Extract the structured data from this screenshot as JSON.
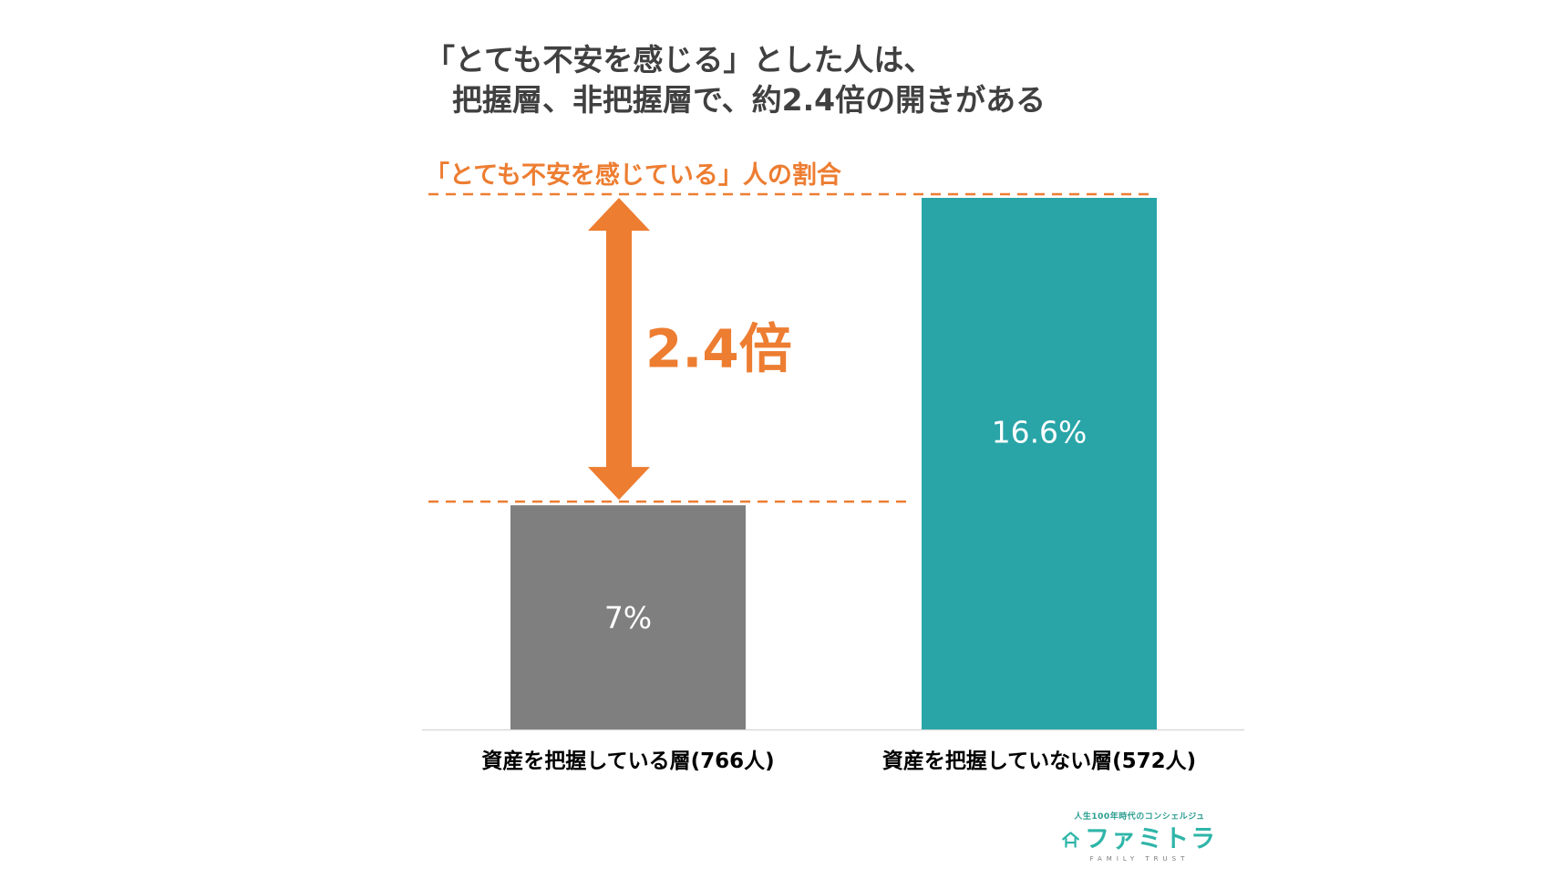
{
  "title": {
    "line1": "「とても不安を感じる」とした人は、",
    "line2": "把握層、非把握層で、約2.4倍の開きがある"
  },
  "colors": {
    "accent": "#ED7D31",
    "bar_known": "#7F7F7F",
    "bar_unknown": "#29A5A8",
    "axis": "#D9D9D9",
    "title": "#404040"
  },
  "chart_data": {
    "type": "bar",
    "title": "「とても不安を感じている」人の割合",
    "categories": [
      "資産を把握している層(766人)",
      "資産を把握していない層(572人)"
    ],
    "values": [
      7,
      16.6
    ],
    "data_labels": [
      "7%",
      "16.6%"
    ],
    "unit": "%",
    "ylim": [
      0,
      16.6
    ],
    "grid": false,
    "legend": "none",
    "annotation": {
      "text": "2.4倍",
      "from_value": 7,
      "to_value": 16.6
    }
  },
  "logo": {
    "tagline": "人生100年時代のコンシェルジュ",
    "name": "ファミトラ",
    "english": "FAMILY TRUST",
    "icon": "house-icon"
  }
}
